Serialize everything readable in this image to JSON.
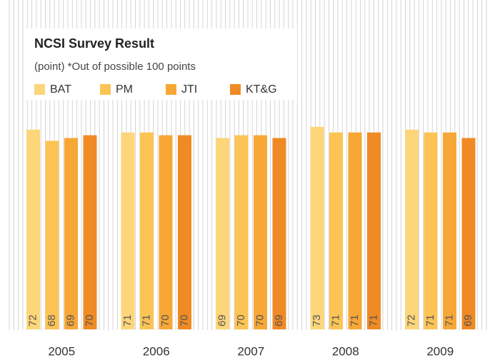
{
  "chart_data": {
    "type": "bar",
    "title": "NCSI Survey Result",
    "subtitle": "(point) *Out of possible 100 points",
    "categories": [
      "2005",
      "2006",
      "2007",
      "2008",
      "2009"
    ],
    "series": [
      {
        "name": "BAT",
        "color": "#fdd67a",
        "values": [
          72,
          71,
          69,
          73,
          72
        ]
      },
      {
        "name": "PM",
        "color": "#fbc454",
        "values": [
          68,
          71,
          70,
          71,
          71
        ]
      },
      {
        "name": "JTI",
        "color": "#f7a736",
        "values": [
          69,
          70,
          70,
          71,
          71
        ]
      },
      {
        "name": "KT&G",
        "color": "#f08a24",
        "values": [
          70,
          70,
          69,
          71,
          69
        ]
      }
    ],
    "ylim": [
      0,
      100
    ]
  }
}
